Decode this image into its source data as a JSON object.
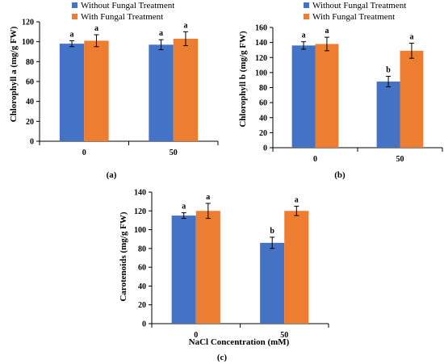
{
  "colors": {
    "without": "#4472C4",
    "with": "#ED7D31",
    "axis": "#000000",
    "error": "#000000"
  },
  "chart_data": [
    {
      "id": "a",
      "type": "bar",
      "panel_label": "(a)",
      "categories": [
        "0",
        "50"
      ],
      "ylabel": "Chlorophyll a (mg/g FW)",
      "xlabel": "",
      "ylim": [
        0,
        120
      ],
      "yticks": [
        0,
        20,
        40,
        60,
        80,
        100,
        120
      ],
      "legend": "top-left",
      "grid": false,
      "series": [
        {
          "name": "Without Fungal Treatment",
          "values": [
            98,
            97
          ],
          "errors": [
            3,
            5
          ],
          "letters": [
            "a",
            "a"
          ]
        },
        {
          "name": "With Fungal Treatment",
          "values": [
            101,
            103
          ],
          "errors": [
            6,
            7
          ],
          "letters": [
            "a",
            "a"
          ]
        }
      ]
    },
    {
      "id": "b",
      "type": "bar",
      "panel_label": "(b)",
      "categories": [
        "0",
        "50"
      ],
      "ylabel": "Chlorophyll b (mg/g FW)",
      "xlabel": "",
      "ylim": [
        0,
        160
      ],
      "yticks": [
        0,
        20,
        40,
        60,
        80,
        100,
        120,
        140,
        160
      ],
      "legend": "top-left",
      "grid": false,
      "series": [
        {
          "name": "Without Fungal Treatment",
          "values": [
            136,
            88
          ],
          "errors": [
            5,
            7
          ],
          "letters": [
            "a",
            "b"
          ]
        },
        {
          "name": "With Fungal Treatment",
          "values": [
            138,
            129
          ],
          "errors": [
            9,
            10
          ],
          "letters": [
            "a",
            "a"
          ]
        }
      ]
    },
    {
      "id": "c",
      "type": "bar",
      "panel_label": "(c)",
      "categories": [
        "0",
        "50"
      ],
      "ylabel": "Carotenoids (mg/g FW)",
      "xlabel": "NaCl Concentration (mM)",
      "ylim": [
        0,
        140
      ],
      "yticks": [
        0,
        20,
        40,
        60,
        80,
        100,
        120,
        140
      ],
      "legend": "none",
      "grid": false,
      "series": [
        {
          "name": "Without Fungal Treatment",
          "values": [
            115,
            86
          ],
          "errors": [
            3,
            6
          ],
          "letters": [
            "a",
            "b"
          ]
        },
        {
          "name": "With Fungal Treatment",
          "values": [
            120,
            120
          ],
          "errors": [
            8,
            5
          ],
          "letters": [
            "a",
            "a"
          ]
        }
      ]
    }
  ]
}
